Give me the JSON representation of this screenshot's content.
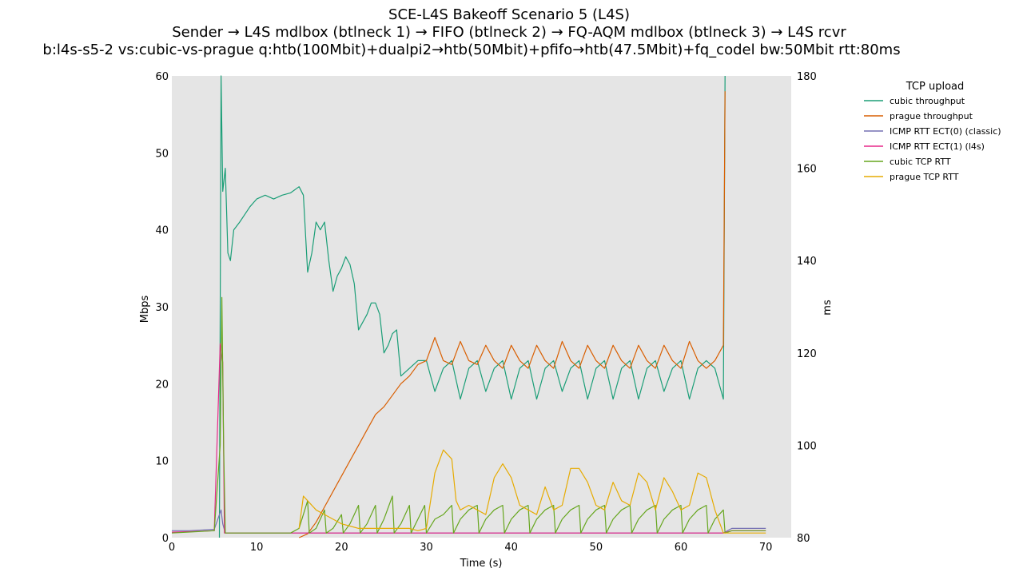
{
  "chart_data": {
    "type": "line",
    "title": "SCE-L4S Bakeoff Scenario 5 (L4S)",
    "subtitle": "Sender → L4S mdlbox (btlneck 1) → FIFO (btlneck 2) → FQ-AQM mdlbox (btlneck 3) → L4S rcvr",
    "subtitle2": "b:l4s-s5-2 vs:cubic-vs-prague q:htb(100Mbit)+dualpi2→htb(50Mbit)+pfifo→htb(47.5Mbit)+fq_codel bw:50Mbit rtt:80ms",
    "xlabel": "Time (s)",
    "ylabel": "Mbps",
    "y2label": "ms",
    "xlim": [
      0,
      73
    ],
    "ylim": [
      0,
      60
    ],
    "y2lim": [
      80,
      180
    ],
    "xticks": [
      0,
      10,
      20,
      30,
      40,
      50,
      60,
      70
    ],
    "yticks": [
      0,
      10,
      20,
      30,
      40,
      50,
      60
    ],
    "y2ticks": [
      80,
      100,
      120,
      140,
      160,
      180
    ],
    "grid": false,
    "legend": {
      "title": "TCP upload",
      "placement": "outside-right"
    },
    "series": [
      {
        "name": "cubic throughput",
        "axis": "left",
        "color": "#1b9e77",
        "points": [
          [
            5.6,
            0
          ],
          [
            5.8,
            60
          ],
          [
            6.0,
            45
          ],
          [
            6.3,
            48
          ],
          [
            6.6,
            37
          ],
          [
            6.9,
            36
          ],
          [
            7.3,
            40
          ],
          [
            8,
            41
          ],
          [
            8.6,
            42
          ],
          [
            9.2,
            43
          ],
          [
            10,
            44
          ],
          [
            11,
            44.5
          ],
          [
            12,
            44
          ],
          [
            13,
            44.5
          ],
          [
            14,
            44.8
          ],
          [
            15,
            45.6
          ],
          [
            15.5,
            44.5
          ],
          [
            16,
            34.5
          ],
          [
            16.5,
            37
          ],
          [
            17,
            41
          ],
          [
            17.5,
            40
          ],
          [
            18,
            41
          ],
          [
            18.5,
            36
          ],
          [
            19,
            32
          ],
          [
            19.5,
            34
          ],
          [
            20,
            35
          ],
          [
            20.5,
            36.5
          ],
          [
            21,
            35.5
          ],
          [
            21.5,
            33
          ],
          [
            22,
            27
          ],
          [
            22.5,
            28
          ],
          [
            23,
            29
          ],
          [
            23.5,
            30.5
          ],
          [
            24,
            30.5
          ],
          [
            24.5,
            29
          ],
          [
            25,
            24
          ],
          [
            25.5,
            25
          ],
          [
            26,
            26.5
          ],
          [
            26.5,
            27
          ],
          [
            27,
            21
          ],
          [
            28,
            22
          ],
          [
            29,
            23
          ],
          [
            30,
            23
          ],
          [
            31,
            19
          ],
          [
            32,
            22
          ],
          [
            33,
            23
          ],
          [
            34,
            18
          ],
          [
            35,
            22
          ],
          [
            36,
            23
          ],
          [
            37,
            19
          ],
          [
            38,
            22
          ],
          [
            39,
            23
          ],
          [
            40,
            18
          ],
          [
            41,
            22
          ],
          [
            42,
            23
          ],
          [
            43,
            18
          ],
          [
            44,
            22
          ],
          [
            45,
            23
          ],
          [
            46,
            19
          ],
          [
            47,
            22
          ],
          [
            48,
            23
          ],
          [
            49,
            18
          ],
          [
            50,
            22
          ],
          [
            51,
            23
          ],
          [
            52,
            18
          ],
          [
            53,
            22
          ],
          [
            54,
            23
          ],
          [
            55,
            18
          ],
          [
            56,
            22
          ],
          [
            57,
            23
          ],
          [
            58,
            19
          ],
          [
            59,
            22
          ],
          [
            60,
            23
          ],
          [
            61,
            18
          ],
          [
            62,
            22
          ],
          [
            63,
            23
          ],
          [
            64,
            22
          ],
          [
            65,
            18
          ],
          [
            65.2,
            60
          ]
        ]
      },
      {
        "name": "prague throughput",
        "axis": "left",
        "color": "#d95f02",
        "points": [
          [
            15,
            0
          ],
          [
            16,
            0.5
          ],
          [
            17,
            2
          ],
          [
            18,
            4
          ],
          [
            19,
            6
          ],
          [
            20,
            8
          ],
          [
            21,
            10
          ],
          [
            22,
            12
          ],
          [
            23,
            14
          ],
          [
            24,
            16
          ],
          [
            25,
            17
          ],
          [
            26,
            18.5
          ],
          [
            27,
            20
          ],
          [
            28,
            21
          ],
          [
            29,
            22.5
          ],
          [
            30,
            23
          ],
          [
            31,
            26
          ],
          [
            32,
            23
          ],
          [
            33,
            22.5
          ],
          [
            34,
            25.5
          ],
          [
            35,
            23
          ],
          [
            36,
            22.5
          ],
          [
            37,
            25
          ],
          [
            38,
            23
          ],
          [
            39,
            22
          ],
          [
            40,
            25
          ],
          [
            41,
            23
          ],
          [
            42,
            22
          ],
          [
            43,
            25
          ],
          [
            44,
            23
          ],
          [
            45,
            22
          ],
          [
            46,
            25.5
          ],
          [
            47,
            23
          ],
          [
            48,
            22
          ],
          [
            49,
            25
          ],
          [
            50,
            23
          ],
          [
            51,
            22
          ],
          [
            52,
            25
          ],
          [
            53,
            23
          ],
          [
            54,
            22
          ],
          [
            55,
            25
          ],
          [
            56,
            23
          ],
          [
            57,
            22
          ],
          [
            58,
            25
          ],
          [
            59,
            23
          ],
          [
            60,
            22
          ],
          [
            61,
            25.5
          ],
          [
            62,
            23
          ],
          [
            63,
            22
          ],
          [
            64,
            23
          ],
          [
            65,
            25
          ],
          [
            65.2,
            58
          ]
        ]
      },
      {
        "name": "ICMP RTT ECT(0) (classic)",
        "axis": "right",
        "color": "#7570b3",
        "points": [
          [
            0,
            81.5
          ],
          [
            2,
            81.5
          ],
          [
            5,
            81.8
          ],
          [
            5.8,
            86
          ],
          [
            6.0,
            83
          ],
          [
            6.3,
            81
          ],
          [
            10,
            81
          ],
          [
            20,
            81
          ],
          [
            30,
            81
          ],
          [
            40,
            81
          ],
          [
            50,
            81
          ],
          [
            60,
            81
          ],
          [
            65,
            81
          ],
          [
            66,
            82
          ],
          [
            68,
            82
          ],
          [
            70,
            82
          ]
        ]
      },
      {
        "name": "ICMP RTT ECT(1) (l4s)",
        "axis": "right",
        "color": "#e7298a",
        "points": [
          [
            0,
            81.2
          ],
          [
            2,
            81.3
          ],
          [
            5,
            81.5
          ],
          [
            5.7,
            122
          ],
          [
            6.0,
            118
          ],
          [
            6.2,
            81
          ],
          [
            10,
            81
          ],
          [
            20,
            81
          ],
          [
            30,
            81
          ],
          [
            40,
            81
          ],
          [
            50,
            81
          ],
          [
            60,
            81
          ],
          [
            65,
            81
          ],
          [
            66,
            81.5
          ],
          [
            68,
            81.5
          ],
          [
            70,
            81.5
          ]
        ]
      },
      {
        "name": "cubic TCP RTT",
        "axis": "right",
        "color": "#66a61e",
        "points": [
          [
            0,
            81
          ],
          [
            5,
            81.5
          ],
          [
            5.7,
            100
          ],
          [
            5.9,
            132
          ],
          [
            6.1,
            100
          ],
          [
            6.3,
            81
          ],
          [
            14,
            81
          ],
          [
            14.5,
            81.5
          ],
          [
            15,
            82
          ],
          [
            16,
            88
          ],
          [
            16.2,
            81
          ],
          [
            17,
            82
          ],
          [
            18,
            86
          ],
          [
            18.2,
            81
          ],
          [
            19,
            82
          ],
          [
            20,
            85
          ],
          [
            20.2,
            81
          ],
          [
            21,
            83
          ],
          [
            22,
            87
          ],
          [
            22.2,
            81
          ],
          [
            23,
            83
          ],
          [
            24,
            87
          ],
          [
            24.2,
            81
          ],
          [
            25,
            84
          ],
          [
            26,
            89
          ],
          [
            26.2,
            81
          ],
          [
            27,
            83
          ],
          [
            28,
            87
          ],
          [
            28.2,
            81
          ],
          [
            29,
            84
          ],
          [
            29.8,
            87
          ],
          [
            30,
            81
          ],
          [
            31,
            84
          ],
          [
            32,
            85
          ],
          [
            33,
            87
          ],
          [
            33.2,
            81
          ],
          [
            34,
            84
          ],
          [
            35,
            86
          ],
          [
            36,
            87
          ],
          [
            36.2,
            81
          ],
          [
            37,
            84
          ],
          [
            38,
            86
          ],
          [
            39,
            87
          ],
          [
            39.2,
            81
          ],
          [
            40,
            84
          ],
          [
            41,
            86
          ],
          [
            42,
            87
          ],
          [
            42.2,
            81
          ],
          [
            43,
            84
          ],
          [
            44,
            86
          ],
          [
            45,
            87
          ],
          [
            45.2,
            81
          ],
          [
            46,
            84
          ],
          [
            47,
            86
          ],
          [
            48,
            87
          ],
          [
            48.2,
            81
          ],
          [
            49,
            84
          ],
          [
            50,
            86
          ],
          [
            51,
            87
          ],
          [
            51.2,
            81
          ],
          [
            52,
            84
          ],
          [
            53,
            86
          ],
          [
            54,
            87
          ],
          [
            54.2,
            81
          ],
          [
            55,
            84
          ],
          [
            56,
            86
          ],
          [
            57,
            87
          ],
          [
            57.2,
            81
          ],
          [
            58,
            84
          ],
          [
            59,
            86
          ],
          [
            60,
            87
          ],
          [
            60.2,
            81
          ],
          [
            61,
            84
          ],
          [
            62,
            86
          ],
          [
            63,
            87
          ],
          [
            63.2,
            81
          ],
          [
            64,
            84
          ],
          [
            65,
            86
          ],
          [
            65.2,
            81
          ],
          [
            66,
            81.5
          ],
          [
            70,
            81.5
          ]
        ]
      },
      {
        "name": "prague TCP RTT",
        "axis": "right",
        "color": "#e6ab02",
        "points": [
          [
            15,
            82
          ],
          [
            15.5,
            89
          ],
          [
            16,
            88
          ],
          [
            17,
            86
          ],
          [
            18,
            85
          ],
          [
            19,
            84
          ],
          [
            20,
            83
          ],
          [
            21,
            82.5
          ],
          [
            22,
            82
          ],
          [
            25,
            82
          ],
          [
            28,
            82
          ],
          [
            29,
            81.5
          ],
          [
            30,
            82
          ],
          [
            31,
            94
          ],
          [
            32,
            99
          ],
          [
            33,
            97
          ],
          [
            33.5,
            88
          ],
          [
            34,
            86
          ],
          [
            35,
            87
          ],
          [
            36,
            86
          ],
          [
            37,
            85
          ],
          [
            38,
            93
          ],
          [
            39,
            96
          ],
          [
            40,
            93
          ],
          [
            41,
            87
          ],
          [
            42,
            86
          ],
          [
            43,
            85
          ],
          [
            44,
            91
          ],
          [
            45,
            86
          ],
          [
            46,
            87
          ],
          [
            47,
            95
          ],
          [
            48,
            95
          ],
          [
            49,
            92
          ],
          [
            50,
            87
          ],
          [
            51,
            86
          ],
          [
            52,
            92
          ],
          [
            53,
            88
          ],
          [
            54,
            87
          ],
          [
            55,
            94
          ],
          [
            56,
            92
          ],
          [
            57,
            86
          ],
          [
            58,
            93
          ],
          [
            59,
            90
          ],
          [
            60,
            86
          ],
          [
            61,
            87
          ],
          [
            62,
            94
          ],
          [
            63,
            93
          ],
          [
            64,
            86
          ],
          [
            65,
            81
          ],
          [
            66,
            81
          ],
          [
            70,
            81
          ]
        ]
      }
    ]
  }
}
